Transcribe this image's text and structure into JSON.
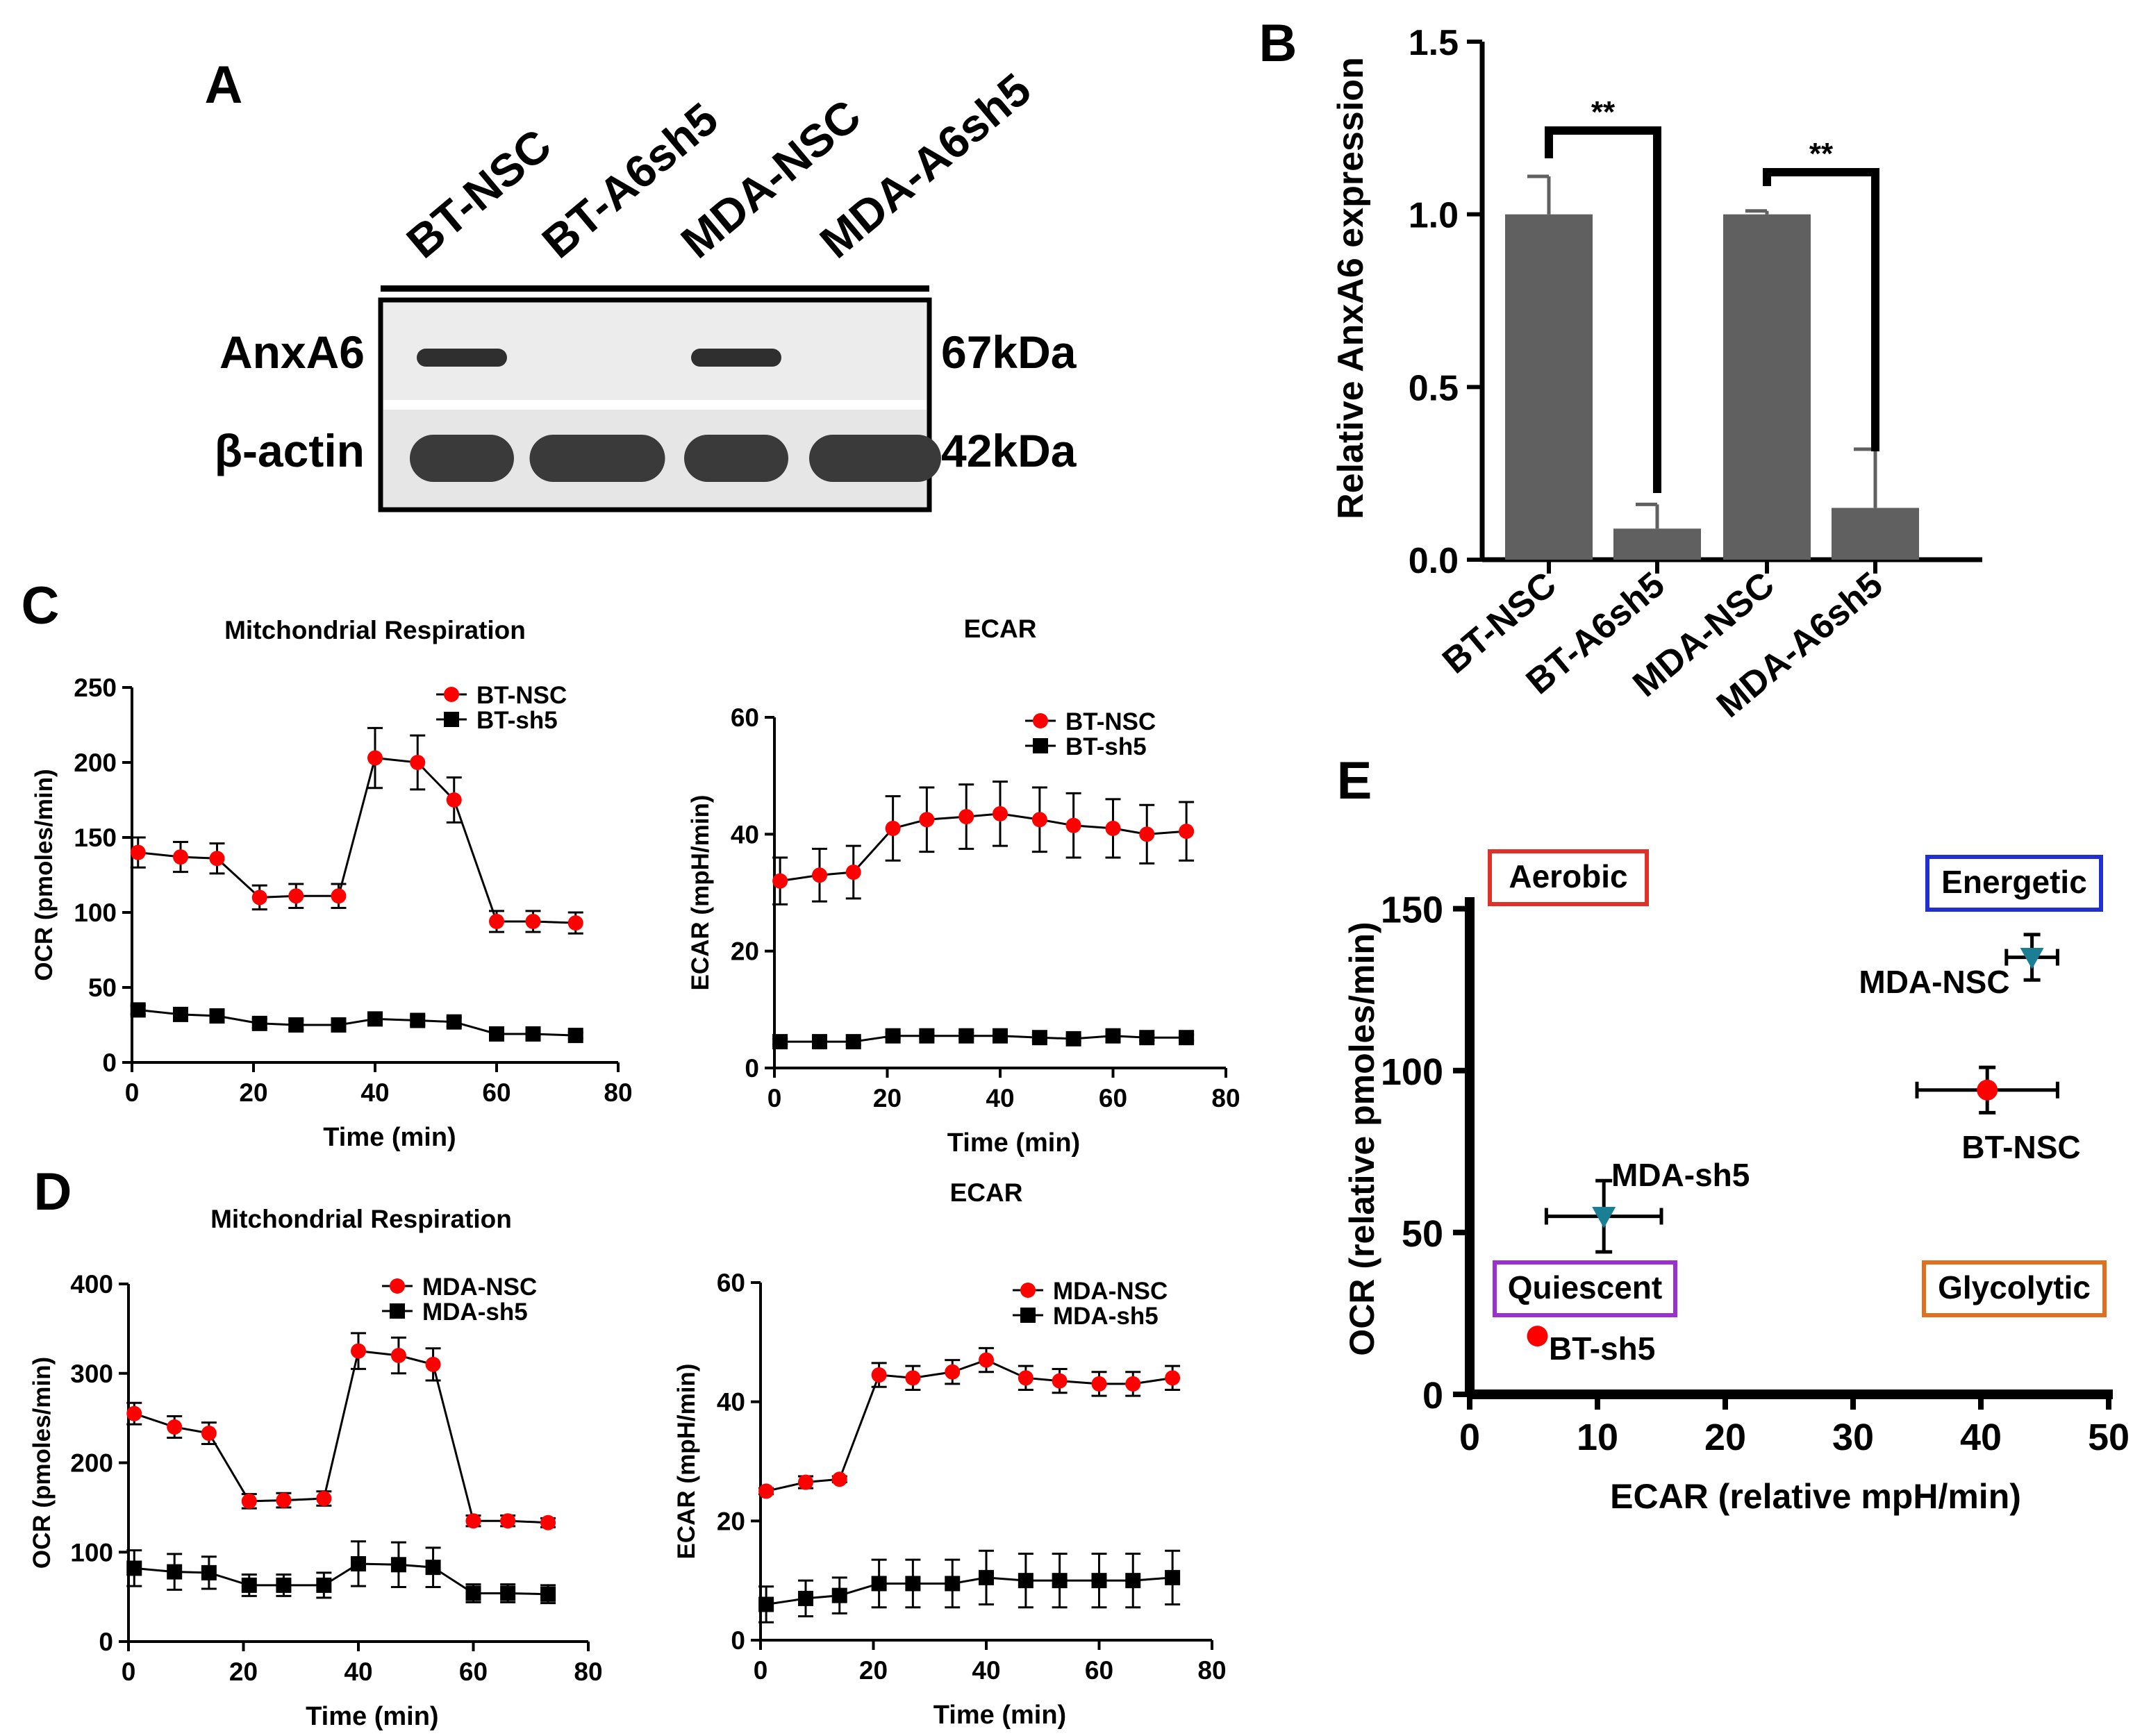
{
  "panel_labels": {
    "a": "A",
    "b": "B",
    "c": "C",
    "d": "D",
    "e": "E"
  },
  "blot": {
    "lanes": [
      "BT-NSC",
      "BT-A6sh5",
      "MDA-NSC",
      "MDA-A6sh5"
    ],
    "rows": [
      "AnxA6",
      "β-actin"
    ],
    "sizes": [
      "67kDa",
      "42kDa"
    ],
    "band_presence": {
      "AnxA6": [
        true,
        false,
        true,
        false
      ],
      "β-actin": [
        true,
        true,
        true,
        true
      ]
    }
  },
  "chart_data": [
    {
      "panel": "B",
      "type": "bar",
      "categories": [
        "BT-NSC",
        "BT-A6sh5",
        "MDA-NSC",
        "MDA-A6sh5"
      ],
      "values": [
        1.0,
        0.09,
        1.0,
        0.15
      ],
      "errors": [
        0.11,
        0.07,
        0.01,
        0.17
      ],
      "ylabel": "Relative AnxA6 expression",
      "ylim": [
        0,
        1.5
      ],
      "yticks": [
        "0.0",
        "0.5",
        "1.0",
        "1.5"
      ],
      "bar_color": "#606060",
      "significance": [
        {
          "from": "BT-NSC",
          "to": "BT-A6sh5",
          "label": "**"
        },
        {
          "from": "MDA-NSC",
          "to": "MDA-A6sh5",
          "label": "**"
        }
      ]
    },
    {
      "panel": "C",
      "type": "line",
      "title": "Mitchondrial Respiration",
      "xlabel": "Time (min)",
      "ylabel": "OCR (pmoles/min)",
      "xlim": [
        0,
        80
      ],
      "ylim": [
        0,
        250
      ],
      "xticks": [
        "0",
        "20",
        "40",
        "60",
        "80"
      ],
      "yticks": [
        "0",
        "50",
        "100",
        "150",
        "200",
        "250"
      ],
      "legend_position": "top-right",
      "x": [
        1,
        8,
        14,
        21,
        27,
        34,
        40,
        47,
        53,
        60,
        66,
        73
      ],
      "series": [
        {
          "name": "BT-NSC",
          "color": "#ff0000",
          "marker": "circle",
          "values": [
            140,
            137,
            136,
            110,
            111,
            111,
            203,
            200,
            175,
            94,
            94,
            93
          ],
          "errors": [
            10,
            10,
            10,
            8,
            8,
            8,
            20,
            18,
            15,
            7,
            7,
            7
          ]
        },
        {
          "name": "BT-sh5",
          "color": "#000000",
          "marker": "square",
          "values": [
            35,
            32,
            31,
            26,
            25,
            25,
            29,
            28,
            27,
            19,
            19,
            18
          ],
          "errors": [
            3,
            3,
            3,
            3,
            3,
            3,
            3,
            3,
            3,
            2,
            2,
            2
          ]
        }
      ]
    },
    {
      "panel": "C",
      "type": "line",
      "title": "ECAR",
      "xlabel": "Time (min)",
      "ylabel": "ECAR (mpH/min)",
      "xlim": [
        0,
        80
      ],
      "ylim": [
        0,
        60
      ],
      "xticks": [
        "0",
        "20",
        "40",
        "60",
        "80"
      ],
      "yticks": [
        "0",
        "20",
        "40",
        "60"
      ],
      "legend_position": "top-right",
      "x": [
        1,
        8,
        14,
        21,
        27,
        34,
        40,
        47,
        53,
        60,
        66,
        73
      ],
      "series": [
        {
          "name": "BT-NSC",
          "color": "#ff0000",
          "marker": "circle",
          "values": [
            32,
            33,
            33.5,
            41,
            42.5,
            43,
            43.5,
            42.5,
            41.5,
            41,
            40,
            40.5
          ],
          "errors": [
            4,
            4.5,
            4.5,
            5.5,
            5.5,
            5.5,
            5.5,
            5.5,
            5.5,
            5,
            5,
            5
          ]
        },
        {
          "name": "BT-sh5",
          "color": "#000000",
          "marker": "square",
          "values": [
            4.5,
            4.5,
            4.5,
            5.5,
            5.5,
            5.5,
            5.5,
            5.2,
            5,
            5.5,
            5.2,
            5.2
          ],
          "errors": [
            0.5,
            0.5,
            0.5,
            0.5,
            0.5,
            0.5,
            0.5,
            0.5,
            0.5,
            0.5,
            0.5,
            0.5
          ]
        }
      ]
    },
    {
      "panel": "D",
      "type": "line",
      "title": "Mitchondrial Respiration",
      "xlabel": "Time (min)",
      "ylabel": "OCR (pmoles/min)",
      "xlim": [
        0,
        80
      ],
      "ylim": [
        0,
        400
      ],
      "xticks": [
        "0",
        "20",
        "40",
        "60",
        "80"
      ],
      "yticks": [
        "0",
        "100",
        "200",
        "300",
        "400"
      ],
      "legend_position": "top-right",
      "x": [
        1,
        8,
        14,
        21,
        27,
        34,
        40,
        47,
        53,
        60,
        66,
        73
      ],
      "series": [
        {
          "name": "MDA-NSC",
          "color": "#ff0000",
          "marker": "circle",
          "values": [
            255,
            240,
            233,
            157,
            158,
            160,
            325,
            320,
            310,
            135,
            135,
            133
          ],
          "errors": [
            12,
            12,
            12,
            8,
            8,
            8,
            20,
            20,
            18,
            6,
            6,
            5
          ]
        },
        {
          "name": "MDA-sh5",
          "color": "#000000",
          "marker": "square",
          "values": [
            82,
            78,
            77,
            63,
            63,
            63,
            87,
            86,
            83,
            54,
            54,
            53
          ],
          "errors": [
            20,
            20,
            18,
            12,
            12,
            14,
            25,
            25,
            22,
            10,
            10,
            10
          ]
        }
      ]
    },
    {
      "panel": "D",
      "type": "line",
      "title": "ECAR",
      "xlabel": "Time (min)",
      "ylabel": "ECAR (mpH/min)",
      "xlim": [
        0,
        80
      ],
      "ylim": [
        0,
        60
      ],
      "xticks": [
        "0",
        "20",
        "40",
        "60",
        "80"
      ],
      "yticks": [
        "0",
        "20",
        "40",
        "60"
      ],
      "legend_position": "top-right",
      "x": [
        1,
        8,
        14,
        21,
        27,
        34,
        40,
        47,
        53,
        60,
        66,
        73
      ],
      "series": [
        {
          "name": "MDA-NSC",
          "color": "#ff0000",
          "marker": "circle",
          "values": [
            25,
            26.5,
            27,
            44.5,
            44,
            45,
            47,
            44,
            43.5,
            43,
            43,
            44
          ],
          "errors": [
            0.5,
            1,
            0.5,
            2,
            2,
            2,
            2,
            2,
            2,
            2,
            2,
            2
          ]
        },
        {
          "name": "MDA-sh5",
          "color": "#000000",
          "marker": "square",
          "values": [
            6,
            7,
            7.5,
            9.5,
            9.5,
            9.5,
            10.5,
            10,
            10,
            10,
            10,
            10.5
          ],
          "errors": [
            3,
            3,
            3,
            4,
            4,
            4,
            4.5,
            4.5,
            4.5,
            4.5,
            4.5,
            4.5
          ]
        }
      ]
    },
    {
      "panel": "E",
      "type": "scatter",
      "xlabel": "ECAR (relative mpH/min)",
      "ylabel": "OCR (relative pmoles/min)",
      "xlim": [
        0,
        50
      ],
      "ylim": [
        0,
        160
      ],
      "xticks": [
        "0",
        "10",
        "20",
        "30",
        "40",
        "50"
      ],
      "yticks": [
        "0",
        "50",
        "100",
        "150"
      ],
      "points": [
        {
          "label": "MDA-NSC",
          "x": 44,
          "y": 135,
          "xerr": 2,
          "yerr": 7,
          "color": "#1a7f95",
          "marker": "triangle-down"
        },
        {
          "label": "BT-NSC",
          "x": 40.5,
          "y": 94,
          "xerr": 5.5,
          "yerr": 7,
          "color": "#ff0000",
          "marker": "circle"
        },
        {
          "label": "MDA-sh5",
          "x": 10.5,
          "y": 55,
          "xerr": 4.5,
          "yerr": 11,
          "color": "#1a7f95",
          "marker": "triangle-down"
        },
        {
          "label": "BT-sh5",
          "x": 5.3,
          "y": 18,
          "xerr": 0,
          "yerr": 0,
          "color": "#ff0000",
          "marker": "circle"
        }
      ],
      "quadrant_labels": [
        {
          "text": "Aerobic",
          "color": "#e0302a"
        },
        {
          "text": "Energetic",
          "color": "#1f2fd0"
        },
        {
          "text": "Quiescent",
          "color": "#9b30d0"
        },
        {
          "text": "Glycolytic",
          "color": "#e07020"
        }
      ]
    }
  ]
}
